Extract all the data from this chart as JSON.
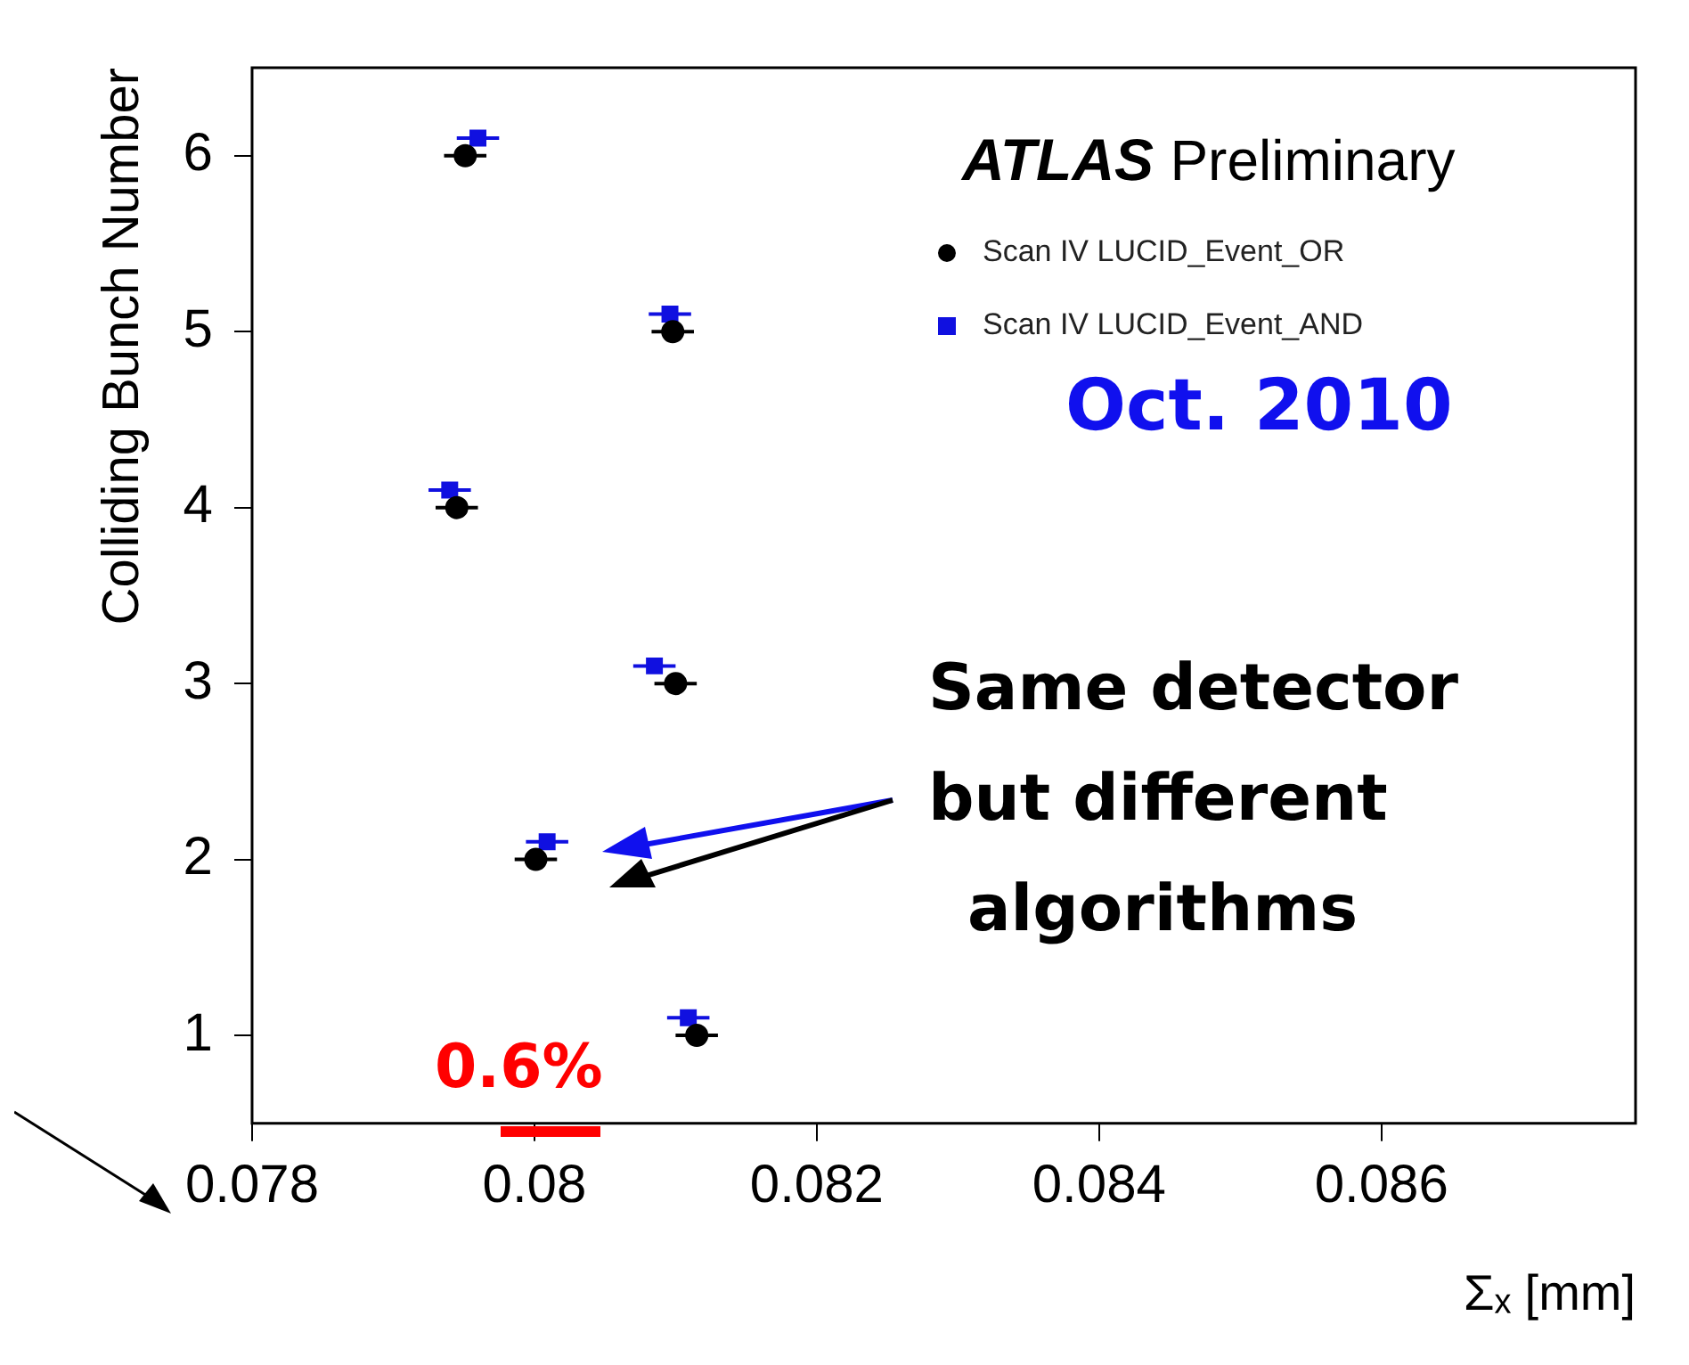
{
  "chart_data": {
    "type": "scatter",
    "xlabel": "Σₓ [mm]",
    "ylabel": "Colliding Bunch Number",
    "xlim": [
      0.078,
      0.0878
    ],
    "xticks": [
      0.078,
      0.08,
      0.082,
      0.084,
      0.086
    ],
    "ylim": [
      0.5,
      6.5
    ],
    "yticks": [
      1,
      2,
      3,
      4,
      5,
      6
    ],
    "legend": "top right",
    "grid": false,
    "series": [
      {
        "name": "Scan IV LUCID_Event_OR",
        "color": "#000000",
        "marker": "circle",
        "x": [
          0.08115,
          0.08001,
          0.081,
          0.07945,
          0.08098,
          0.07951
        ],
        "values": [
          1,
          2,
          3,
          4,
          5,
          6
        ],
        "xerrors": [
          0.00015,
          0.00015,
          0.00015,
          0.00015,
          0.00015,
          0.00015
        ]
      },
      {
        "name": "Scan IV LUCID_Event_AND",
        "color": "#1010e0",
        "marker": "square",
        "x": [
          0.08109,
          0.08009,
          0.08085,
          0.0794,
          0.08096,
          0.0796
        ],
        "values": [
          1.1,
          2.1,
          3.1,
          4.1,
          5.1,
          6.1
        ],
        "xerrors": [
          0.00015,
          0.00015,
          0.00015,
          0.00015,
          0.00015,
          0.00015
        ]
      }
    ],
    "annotations": [
      "ATLAS Preliminary",
      "Oct. 2010",
      "Same detector\nbut different\nalgorithms",
      "0.6%"
    ]
  }
}
